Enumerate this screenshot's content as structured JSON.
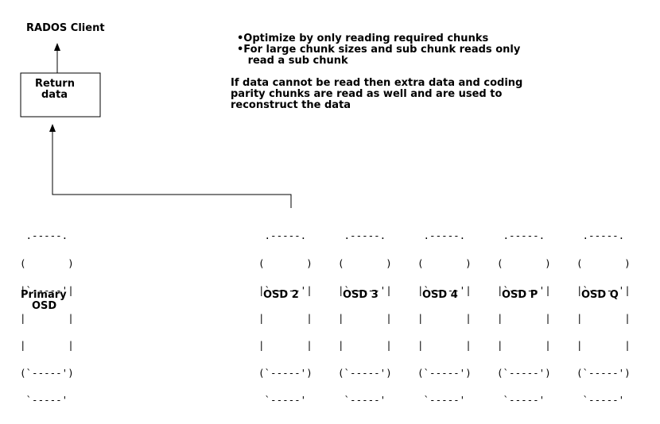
{
  "client_label": "RADOS Client",
  "return_box": {
    "line1": "Return",
    "line2": "data"
  },
  "notes": {
    "bullets": [
      "•Optimize by only reading required chunks",
      "•For large chunk sizes and sub chunk reads only",
      "   read a sub chunk"
    ],
    "paragraph": [
      "If data cannot be read then extra data and coding",
      "parity chunks are read as well and are used to",
      "reconstruct the data"
    ]
  },
  "osds": [
    {
      "label_lines": [
        "Primary",
        "OSD"
      ]
    },
    {
      "label_lines": [
        "OSD 2"
      ]
    },
    {
      "label_lines": [
        "OSD 3"
      ]
    },
    {
      "label_lines": [
        "OSD 4"
      ]
    },
    {
      "label_lines": [
        "OSD P"
      ]
    },
    {
      "label_lines": [
        "OSD Q"
      ]
    }
  ],
  "cylinder_ascii": [
    " .-----.",
    "(       )",
    "|`-----'|",
    "|       |",
    "|       |",
    "(`-----')",
    " `-----'"
  ]
}
